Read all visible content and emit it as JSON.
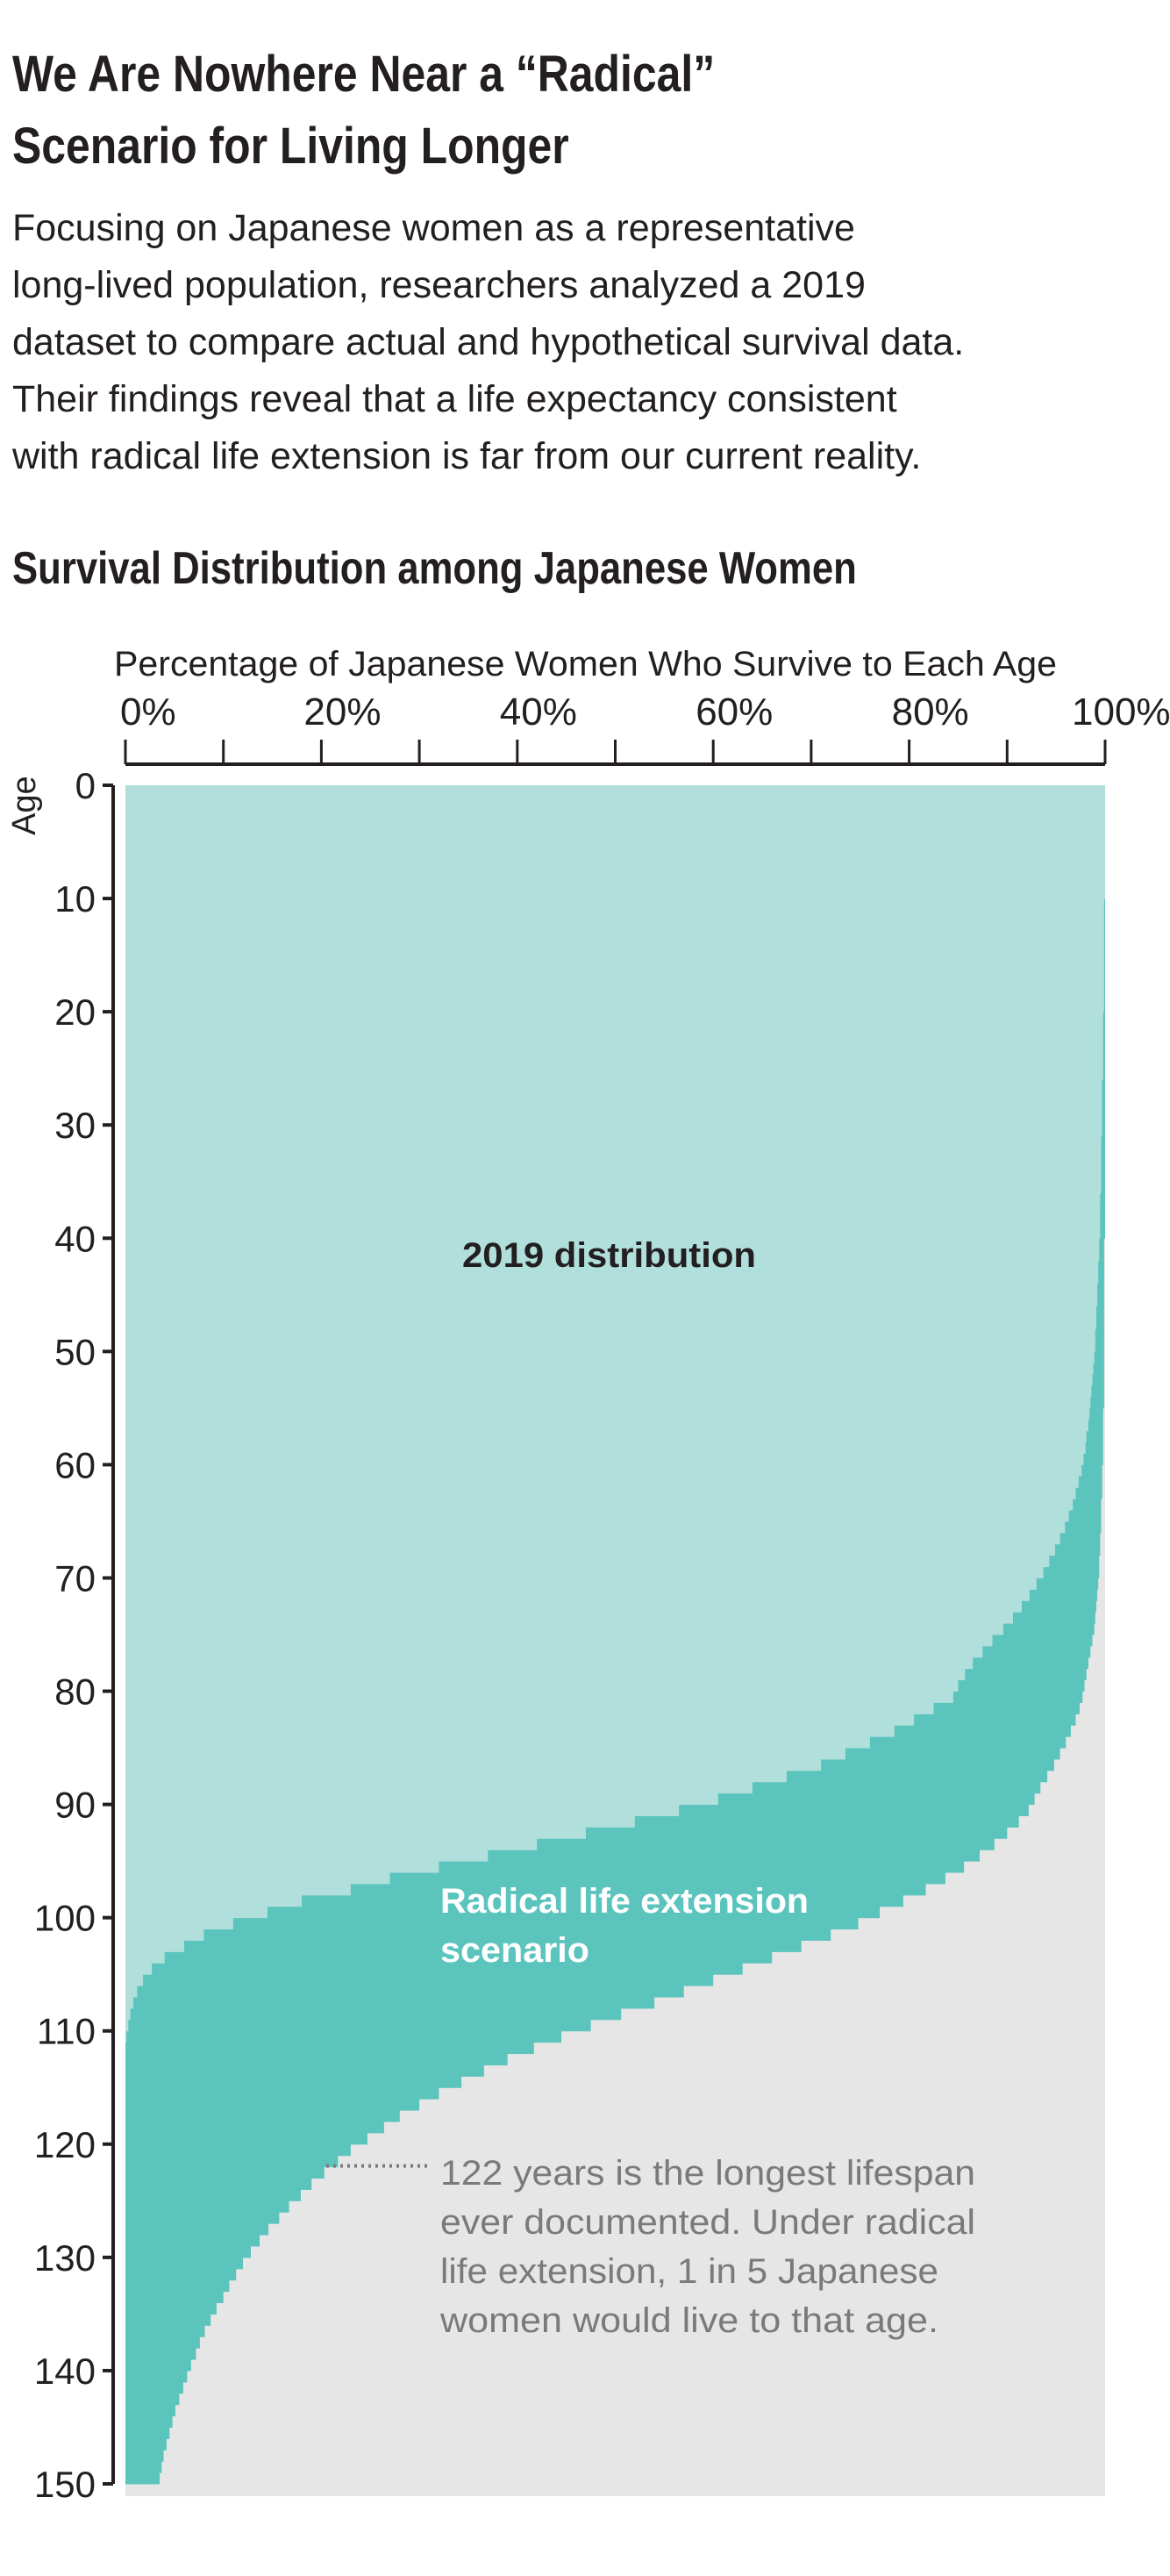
{
  "header": {
    "title_line1": "We Are Nowhere Near a “Radical”",
    "title_line2": "Scenario for Living Longer",
    "description": [
      "Focusing on Japanese women as a representative",
      "long-lived population, researchers analyzed a 2019",
      "dataset to compare actual and hypothetical survival data.",
      "Their findings reveal that a life expectancy consistent",
      "with radical life extension is far from our current reality."
    ],
    "subtitle": "Survival Distribution among Japanese Women"
  },
  "colors": {
    "series_2019": "#b0dfdc",
    "series_radical": "#5bc4bd",
    "background_area": "#e6e6e6",
    "annotation": "#7a7a7a"
  },
  "chart_data": {
    "type": "bar",
    "orientation": "horizontal",
    "title": "Survival Distribution among Japanese Women",
    "xlabel": "Percentage of Japanese Women Who Survive to Each Age",
    "ylabel": "Age",
    "xlim": [
      0,
      100
    ],
    "ylim": [
      0,
      150
    ],
    "x_ticks": [
      "0%",
      "20%",
      "40%",
      "60%",
      "80%",
      "100%"
    ],
    "y_ticks": [
      "0",
      "10",
      "20",
      "30",
      "40",
      "50",
      "60",
      "70",
      "80",
      "90",
      "100",
      "110",
      "120",
      "130",
      "140",
      "150"
    ],
    "ages_start": 0,
    "series": [
      {
        "name": "2019 distribution",
        "label": "2019 distribution",
        "values": [
          100,
          100,
          100,
          100,
          100,
          100,
          100,
          100,
          100,
          100,
          99.9,
          99.9,
          99.9,
          99.9,
          99.9,
          99.9,
          99.9,
          99.9,
          99.9,
          99.9,
          99.8,
          99.8,
          99.8,
          99.8,
          99.8,
          99.8,
          99.7,
          99.7,
          99.7,
          99.7,
          99.7,
          99.6,
          99.6,
          99.6,
          99.6,
          99.6,
          99.5,
          99.5,
          99.5,
          99.5,
          99.4,
          99.4,
          99.3,
          99.3,
          99.2,
          99.2,
          99.1,
          99.1,
          99,
          99,
          98.9,
          98.8,
          98.7,
          98.6,
          98.5,
          98.4,
          98.3,
          98.1,
          98,
          97.8,
          97.6,
          97.3,
          97,
          96.7,
          96.3,
          95.9,
          95.4,
          94.9,
          94.3,
          93.7,
          93,
          92.3,
          91.5,
          90.6,
          89.6,
          88.5,
          87.5,
          86.5,
          85.7,
          85,
          84.5,
          82.5,
          80.5,
          78.5,
          76,
          73.5,
          71,
          67.5,
          64,
          60.5,
          56.5,
          52,
          47,
          42,
          37,
          32,
          27,
          23,
          18,
          14.5,
          11,
          8,
          6,
          4,
          2.7,
          1.8,
          1.2,
          0.8,
          0.5,
          0.3,
          0.1,
          0,
          0,
          0,
          0,
          0,
          0,
          0,
          0,
          0,
          0,
          0,
          0,
          0,
          0,
          0,
          0,
          0,
          0,
          0,
          0,
          0,
          0,
          0,
          0,
          0,
          0,
          0,
          0,
          0,
          0,
          0,
          0,
          0,
          0,
          0,
          0,
          0,
          0,
          0
        ]
      },
      {
        "name": "Radical life extension scenario",
        "label_line1": "Radical life extension",
        "label_line2": "scenario",
        "values": [
          100,
          100,
          100,
          100,
          100,
          100,
          100,
          100,
          100,
          100,
          100,
          100,
          100,
          100,
          100,
          100,
          100,
          100,
          100,
          100,
          100,
          100,
          100,
          100,
          100,
          100,
          100,
          100,
          100,
          100,
          100,
          100,
          100,
          100,
          100,
          100,
          100,
          100,
          100,
          100,
          99.9,
          99.9,
          99.9,
          99.9,
          99.9,
          99.9,
          99.9,
          99.9,
          99.9,
          99.9,
          99.9,
          99.9,
          99.9,
          99.9,
          99.9,
          99.8,
          99.8,
          99.8,
          99.8,
          99.8,
          99.7,
          99.7,
          99.7,
          99.6,
          99.6,
          99.6,
          99.5,
          99.5,
          99.4,
          99.4,
          99.3,
          99.2,
          99.1,
          99,
          98.9,
          98.7,
          98.5,
          98.3,
          98.1,
          97.9,
          97.7,
          97.4,
          97,
          96.5,
          96,
          95.4,
          94.8,
          94.1,
          93.4,
          92.8,
          92.2,
          91.2,
          90,
          88.7,
          87.2,
          85.6,
          83.7,
          81.7,
          79.4,
          77,
          74.8,
          72,
          69,
          66,
          63,
          60,
          57,
          54,
          50.6,
          47.5,
          44.5,
          41.7,
          39,
          36.6,
          34.3,
          32,
          30,
          28,
          26.4,
          24.7,
          23,
          21.7,
          20.3,
          19,
          17.9,
          16.7,
          15.7,
          14.6,
          13.7,
          12.8,
          12,
          11.3,
          10.6,
          10,
          9.3,
          8.7,
          8.1,
          7.6,
          7.2,
          6.7,
          6.3,
          5.9,
          5.5,
          5.1,
          4.8,
          4.5,
          4.2,
          3.9,
          3.7,
          3.5
        ]
      }
    ],
    "annotations": [
      {
        "age": 122,
        "lines": [
          "122 years is the longest lifespan",
          "ever documented. Under radical",
          "life extension, 1 in 5 Japanese",
          "women would live to that age."
        ]
      }
    ]
  }
}
